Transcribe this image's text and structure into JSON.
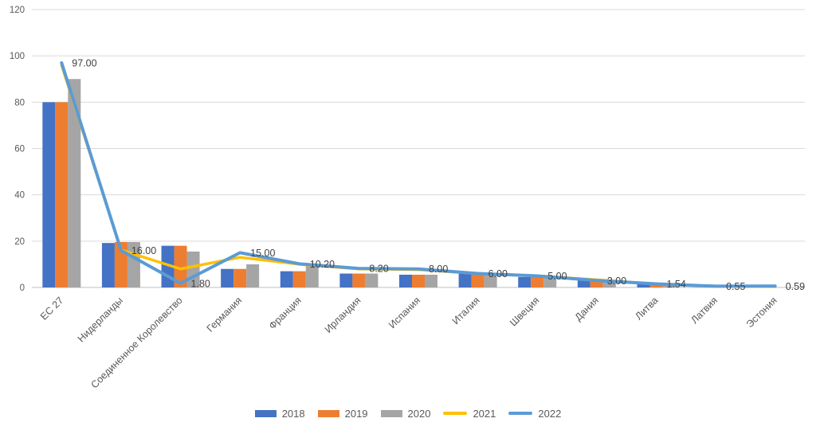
{
  "figure": {
    "background": "#FFFFFF"
  },
  "chart_data": {
    "type": "combo (bar + line)",
    "title": "",
    "xlabel": "",
    "ylabel": "",
    "categories": [
      "ЕС 27",
      "Нидерланды",
      "Соединенное Королевство",
      "Германия",
      "Франция",
      "Ирландия",
      "Испания",
      "Италия",
      "Швеция",
      "Дания",
      "Литва",
      "Латвия",
      "Эстония"
    ],
    "series": [
      {
        "name": "2018",
        "kind": "bar",
        "color": "#4472C4",
        "values": [
          80,
          19.2,
          18,
          8,
          7,
          6,
          5.5,
          6,
          4.5,
          3,
          1.5,
          0,
          0
        ]
      },
      {
        "name": "2019",
        "kind": "bar",
        "color": "#ED7D31",
        "values": [
          80,
          19.6,
          18,
          8,
          7,
          6,
          5.5,
          6,
          4.6,
          3.4,
          1.2,
          0,
          0
        ]
      },
      {
        "name": "2020",
        "kind": "bar",
        "color": "#A5A5A5",
        "values": [
          90,
          19.6,
          15.5,
          10,
          9.8,
          6,
          5.5,
          5.6,
          4.6,
          3.2,
          0.9,
          0,
          0
        ]
      },
      {
        "name": "2021",
        "kind": "line",
        "color": "#FFC000",
        "values": [
          96,
          16.2,
          8,
          13,
          10,
          8,
          7.7,
          6,
          5,
          3.3,
          1.5,
          0.5,
          0.4
        ]
      },
      {
        "name": "2022",
        "kind": "line",
        "color": "#5B9BD5",
        "values": [
          97,
          16,
          1.8,
          15,
          10.2,
          8.2,
          8,
          6,
          5,
          3,
          1.54,
          0.55,
          0.59
        ],
        "data_labels": [
          "97.00",
          "16.00",
          "1.80",
          "15.00",
          "10.20",
          "8.20",
          "8.00",
          "6.00",
          "5.00",
          "3.00",
          "1.54",
          "0.55",
          "0.59"
        ]
      }
    ],
    "y_axis": {
      "min": 0,
      "max": 120,
      "step": 20,
      "tick_labels": [
        "0",
        "20",
        "40",
        "60",
        "80",
        "100",
        "120"
      ]
    },
    "x_axis": {
      "label_rotation_deg": -45
    },
    "grid": true,
    "legend_position": "bottom",
    "colors": {
      "gridline": "#D9D9D9",
      "axis_line": "#BFBFBF",
      "tick_text": "#595959",
      "data_label_text": "#404040"
    }
  }
}
